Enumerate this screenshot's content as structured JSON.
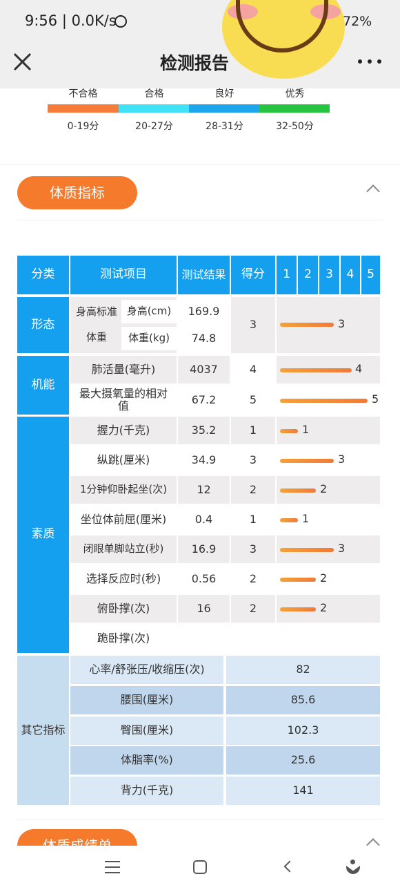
{
  "status_bar": {
    "time": "9:56 | 0.0K/s",
    "battery": "72%"
  },
  "header": {
    "title": "检测报告"
  },
  "legend": {
    "items": [
      {
        "label": "不合格",
        "range": "0-19分",
        "color": "#f77b39"
      },
      {
        "label": "合格",
        "range": "20-27分",
        "color": "#3fe2f6"
      },
      {
        "label": "良好",
        "range": "28-31分",
        "color": "#1ea6ec"
      },
      {
        "label": "优秀",
        "range": "32-50分",
        "color": "#27c442"
      }
    ]
  },
  "section1": {
    "title": "体质指标"
  },
  "section2": {
    "title": "体质成绩单"
  },
  "table": {
    "headers": {
      "category": "分类",
      "item": "测试项目",
      "result": "测试结果",
      "score": "得分",
      "levels": [
        "1",
        "2",
        "3",
        "4",
        "5"
      ]
    },
    "xingtai": {
      "category": "形态",
      "group": "身高标准",
      "height_label": "身高(cm)",
      "height_value": "169.9",
      "weight_label": "体重",
      "weight_sub": "体重(kg)",
      "weight_value": "74.8",
      "score": "3"
    },
    "jineng": {
      "category": "机能",
      "rows": [
        {
          "item": "肺活量(毫升)",
          "result": "4037",
          "score": "4"
        },
        {
          "item": "最大摄氧量的相对值",
          "result": "67.2",
          "score": "5"
        }
      ]
    },
    "suzhi": {
      "category": "素质",
      "rows": [
        {
          "item": "握力(千克)",
          "result": "35.2",
          "score": "1"
        },
        {
          "item": "纵跳(厘米)",
          "result": "34.9",
          "score": "3"
        },
        {
          "item": "1分钟仰卧起坐(次)",
          "result": "12",
          "score": "2"
        },
        {
          "item": "坐位体前屈(厘米)",
          "result": "0.4",
          "score": "1"
        },
        {
          "item": "闭眼单脚站立(秒)",
          "result": "16.9",
          "score": "3"
        },
        {
          "item": "选择反应时(秒)",
          "result": "0.56",
          "score": "2"
        },
        {
          "item": "俯卧撑(次)",
          "result": "16",
          "score": "2"
        },
        {
          "item": "跪卧撑(次)",
          "result": "",
          "score": ""
        }
      ]
    },
    "other": {
      "category": "其它指标",
      "rows": [
        {
          "item": "心率/舒张压/收缩压(次)",
          "value": "82"
        },
        {
          "item": "腰围(厘米)",
          "value": "85.6"
        },
        {
          "item": "臀围(厘米)",
          "value": "102.3"
        },
        {
          "item": "体脂率(%)",
          "value": "25.6"
        },
        {
          "item": "背力(千克)",
          "value": "141"
        }
      ]
    }
  },
  "colors": {
    "accent": "#f57a2c",
    "table_header": "#14a0ee"
  }
}
